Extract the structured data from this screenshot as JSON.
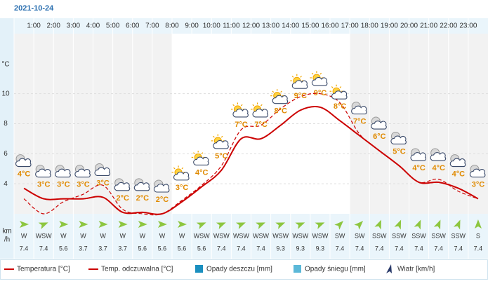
{
  "date": "2021-10-24",
  "chart_data": {
    "type": "line",
    "y_unit": "°C",
    "categories": [
      null,
      "1:00",
      "2:00",
      "3:00",
      "4:00",
      "5:00",
      "6:00",
      "7:00",
      "8:00",
      "9:00",
      "10:00",
      "11:00",
      "12:00",
      "13:00",
      "14:00",
      "15:00",
      "16:00",
      "17:00",
      "18:00",
      "19:00",
      "20:00",
      "21:00",
      "22:00",
      "23:00"
    ],
    "ylim": [
      2,
      14
    ],
    "yticks": [
      4,
      6,
      8,
      10
    ],
    "grid": true,
    "series": [
      {
        "name": "Temperatura [°C]",
        "color": "#cc0000",
        "style": "solid",
        "values": [
          3.7,
          3.0,
          3.0,
          3.0,
          3.1,
          2.1,
          2.1,
          2.0,
          2.8,
          3.8,
          4.9,
          7.0,
          7.0,
          7.9,
          8.9,
          9.1,
          8.2,
          7.2,
          6.2,
          5.2,
          4.1,
          4.1,
          3.7,
          3.0
        ],
        "value_labels": [
          "4°C",
          "3°C",
          "3°C",
          "3°C",
          "3°C",
          "2°C",
          "2°C",
          "2°C",
          "3°C",
          "4°C",
          "5°C",
          "7°C",
          "7°C",
          "8°C",
          "9°C",
          "9°C",
          "8°C",
          "7°C",
          "6°C",
          "5°C",
          "4°C",
          "4°C",
          "4°C",
          "3°C"
        ]
      },
      {
        "name": "Temp. odczuwalna [°C]",
        "color": "#cc0000",
        "style": "dashed",
        "values": [
          3.0,
          2.0,
          2.8,
          3.3,
          3.9,
          2.3,
          2.0,
          2.0,
          2.9,
          3.9,
          5.2,
          7.6,
          7.9,
          9.0,
          9.8,
          10.0,
          9.4,
          7.3,
          6.2,
          5.2,
          4.1,
          4.3,
          3.5,
          3.0
        ]
      }
    ],
    "wind": {
      "unit": [
        "km",
        "/h"
      ],
      "directions": [
        "W",
        "WSW",
        "W",
        "W",
        "W",
        "W",
        "W",
        "W",
        "W",
        "WSW",
        "WSW",
        "WSW",
        "WSW",
        "WSW",
        "WSW",
        "WSW",
        "SW",
        "SW",
        "SSW",
        "SSW",
        "SSW",
        "SSW",
        "SSW",
        "S"
      ],
      "speeds": [
        7.4,
        7.4,
        5.6,
        3.7,
        3.7,
        3.7,
        5.6,
        5.6,
        5.6,
        5.6,
        7.4,
        7.4,
        7.4,
        9.3,
        9.3,
        9.3,
        7.4,
        7.4,
        7.4,
        7.4,
        7.4,
        7.4,
        7.4,
        7.4
      ]
    },
    "legend_extra": [
      {
        "name": "Opady deszczu [mm]",
        "color": "#1a8fbf"
      },
      {
        "name": "Opady śniegu [mm]",
        "color": "#5bb8d8"
      },
      {
        "name": "Wiatr [km/h]",
        "color": "#2a3a6a"
      }
    ]
  }
}
